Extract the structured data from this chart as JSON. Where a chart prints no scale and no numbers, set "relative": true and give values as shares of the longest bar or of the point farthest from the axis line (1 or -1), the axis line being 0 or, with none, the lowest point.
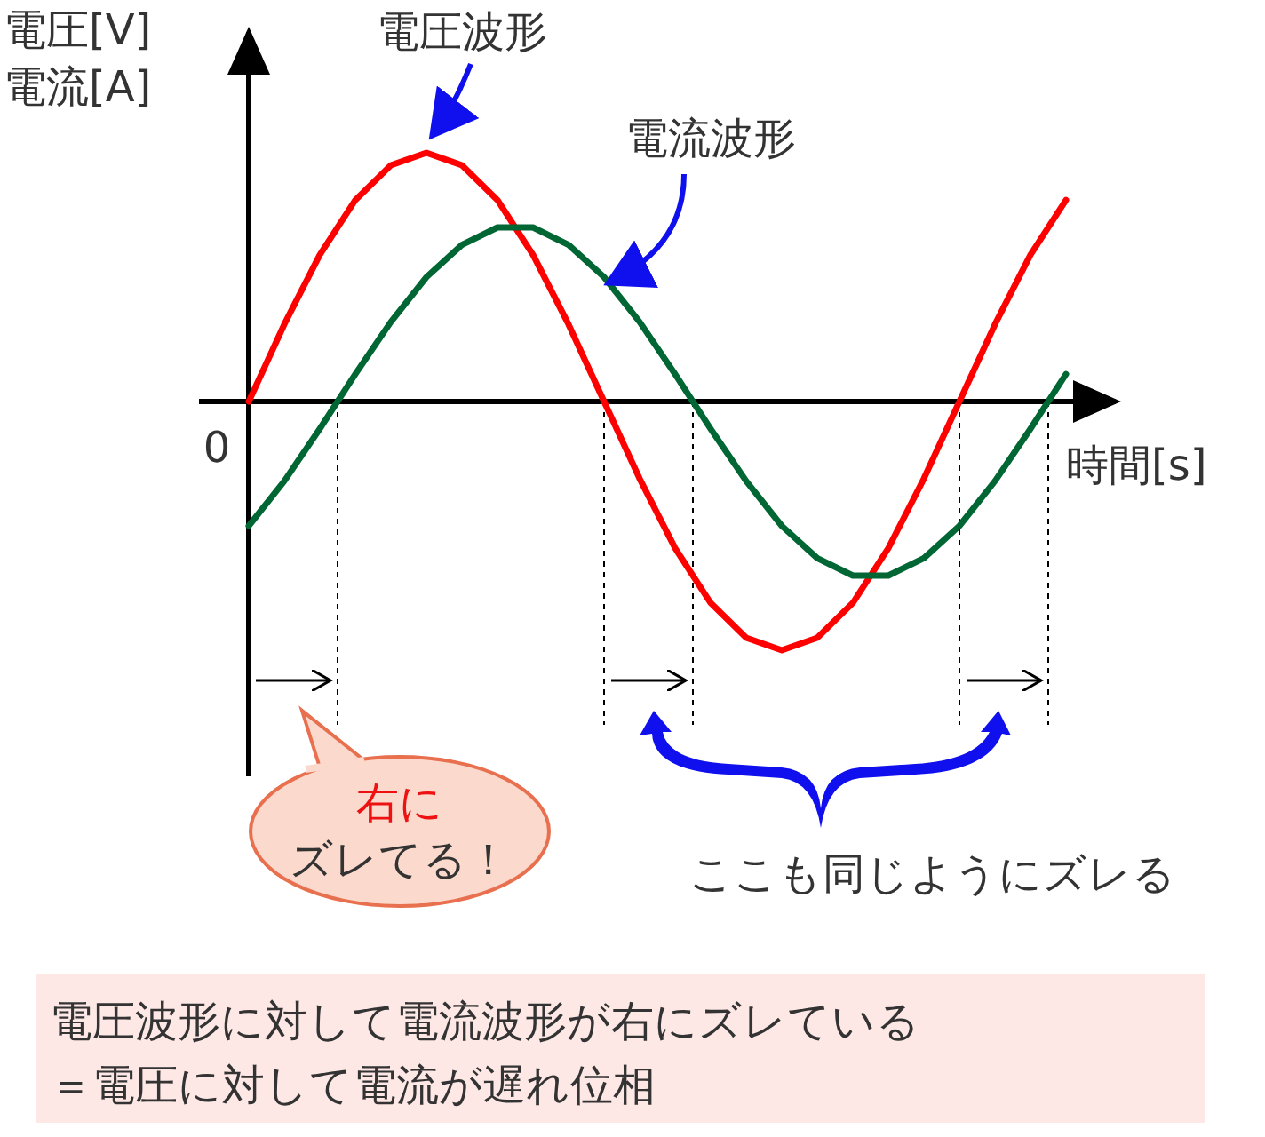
{
  "chart_data": {
    "type": "line",
    "relative": true,
    "xlabel": "時間[s]",
    "ylabel": "電圧[V]\n電流[A]",
    "categories": [
      null,
      null,
      null,
      null,
      null,
      null,
      null,
      null,
      null,
      null,
      null,
      null,
      null,
      null,
      null,
      null,
      null,
      null,
      null,
      null,
      null,
      null,
      null,
      null
    ],
    "series": [
      {
        "name": "電圧波形",
        "color": "#ff0000",
        "values": [
          0,
          0.31,
          0.59,
          0.81,
          0.95,
          1,
          0.95,
          0.81,
          0.59,
          0.31,
          0,
          -0.31,
          -0.59,
          -0.81,
          -0.95,
          -1,
          -0.95,
          -0.81,
          -0.59,
          -0.31,
          0,
          0.31,
          0.59,
          0.81
        ]
      },
      {
        "name": "電流波形",
        "color": "#006633",
        "values": [
          -0.5,
          -0.32,
          -0.11,
          0.11,
          0.32,
          0.5,
          0.63,
          0.7,
          0.7,
          0.63,
          0.5,
          0.32,
          0.11,
          -0.11,
          -0.32,
          -0.5,
          -0.63,
          -0.7,
          -0.7,
          -0.63,
          -0.5,
          -0.32,
          -0.11,
          0.11
        ]
      }
    ],
    "annotations": [
      "0",
      "右に",
      "ズレてる！",
      "ここも同じようにズレる",
      "電圧波形に対して電流波形が右にズレている",
      "＝電圧に対して電流が遅れ位相"
    ],
    "marker": "none",
    "line_style": "solid",
    "grid": false,
    "legend": false
  }
}
